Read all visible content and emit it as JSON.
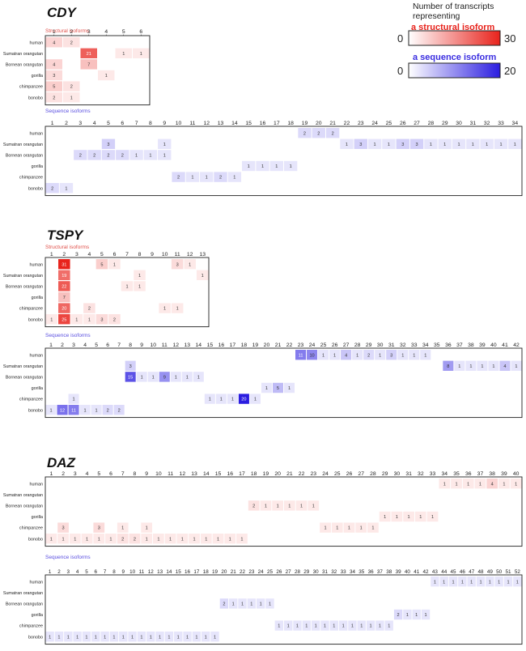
{
  "legend": {
    "title": "Number of transcripts representing",
    "structural_label": "a structural isoform",
    "structural_min": "0",
    "structural_max": "30",
    "sequence_label": "a sequence isoform",
    "sequence_min": "0",
    "sequence_max": "20",
    "structural_color": "#e8231c",
    "sequence_color": "#2b1de0"
  },
  "species": [
    "human",
    "Sumatran orangutan",
    "Bornean orangutan",
    "gorilla",
    "chimpanzee",
    "bonobo"
  ],
  "chart_data": [
    {
      "type": "heatmap",
      "gene": "CDY",
      "panels": [
        {
          "kind": "structural",
          "title": "Structural isoforms",
          "columns": 6,
          "scale_max": 30,
          "cells": [
            [
              0,
              1,
              4
            ],
            [
              0,
              2,
              2
            ],
            [
              1,
              3,
              21
            ],
            [
              1,
              5,
              1
            ],
            [
              1,
              6,
              1
            ],
            [
              2,
              1,
              4
            ],
            [
              2,
              3,
              7
            ],
            [
              3,
              1,
              3
            ],
            [
              3,
              4,
              1
            ],
            [
              4,
              1,
              5
            ],
            [
              4,
              2,
              2
            ],
            [
              5,
              1,
              2
            ],
            [
              5,
              2,
              1
            ]
          ]
        },
        {
          "kind": "sequence",
          "title": "Sequence isoforms",
          "columns": 34,
          "scale_max": 20,
          "cells": [
            [
              0,
              19,
              2
            ],
            [
              0,
              20,
              2
            ],
            [
              0,
              21,
              2
            ],
            [
              1,
              5,
              3
            ],
            [
              1,
              9,
              1
            ],
            [
              1,
              22,
              1
            ],
            [
              1,
              23,
              3
            ],
            [
              1,
              24,
              1
            ],
            [
              1,
              25,
              1
            ],
            [
              1,
              26,
              3
            ],
            [
              1,
              27,
              3
            ],
            [
              1,
              28,
              1
            ],
            [
              1,
              29,
              1
            ],
            [
              1,
              30,
              1
            ],
            [
              1,
              31,
              1
            ],
            [
              1,
              32,
              1
            ],
            [
              1,
              33,
              1
            ],
            [
              1,
              34,
              1
            ],
            [
              2,
              3,
              2
            ],
            [
              2,
              4,
              2
            ],
            [
              2,
              5,
              2
            ],
            [
              2,
              6,
              2
            ],
            [
              2,
              7,
              1
            ],
            [
              2,
              8,
              1
            ],
            [
              2,
              9,
              1
            ],
            [
              3,
              15,
              1
            ],
            [
              3,
              16,
              1
            ],
            [
              3,
              17,
              1
            ],
            [
              3,
              18,
              1
            ],
            [
              4,
              10,
              2
            ],
            [
              4,
              11,
              1
            ],
            [
              4,
              12,
              1
            ],
            [
              4,
              13,
              2
            ],
            [
              4,
              14,
              1
            ],
            [
              5,
              1,
              2
            ],
            [
              5,
              2,
              1
            ]
          ]
        }
      ]
    },
    {
      "type": "heatmap",
      "gene": "TSPY",
      "panels": [
        {
          "kind": "structural",
          "title": "Structural isoforms",
          "columns": 13,
          "scale_max": 30,
          "cells": [
            [
              0,
              2,
              31
            ],
            [
              0,
              5,
              5
            ],
            [
              0,
              6,
              1
            ],
            [
              0,
              11,
              3
            ],
            [
              0,
              12,
              1
            ],
            [
              1,
              2,
              19
            ],
            [
              1,
              8,
              1
            ],
            [
              1,
              13,
              1
            ],
            [
              2,
              2,
              22
            ],
            [
              2,
              7,
              1
            ],
            [
              2,
              8,
              1
            ],
            [
              3,
              2,
              7
            ],
            [
              4,
              2,
              20
            ],
            [
              4,
              4,
              2
            ],
            [
              4,
              10,
              1
            ],
            [
              4,
              11,
              1
            ],
            [
              5,
              1,
              1
            ],
            [
              5,
              2,
              25
            ],
            [
              5,
              3,
              1
            ],
            [
              5,
              4,
              1
            ],
            [
              5,
              5,
              3
            ],
            [
              5,
              6,
              2
            ]
          ]
        },
        {
          "kind": "sequence",
          "title": "Sequence isoforms",
          "columns": 42,
          "scale_max": 20,
          "cells": [
            [
              0,
              23,
              11
            ],
            [
              0,
              24,
              10
            ],
            [
              0,
              25,
              1
            ],
            [
              0,
              26,
              1
            ],
            [
              0,
              27,
              4
            ],
            [
              0,
              28,
              1
            ],
            [
              0,
              29,
              2
            ],
            [
              0,
              30,
              1
            ],
            [
              0,
              31,
              3
            ],
            [
              0,
              32,
              1
            ],
            [
              0,
              33,
              1
            ],
            [
              0,
              34,
              1
            ],
            [
              1,
              8,
              3
            ],
            [
              1,
              36,
              8
            ],
            [
              1,
              37,
              1
            ],
            [
              1,
              38,
              1
            ],
            [
              1,
              39,
              1
            ],
            [
              1,
              40,
              1
            ],
            [
              1,
              41,
              4
            ],
            [
              1,
              42,
              1
            ],
            [
              2,
              8,
              15
            ],
            [
              2,
              9,
              1
            ],
            [
              2,
              10,
              1
            ],
            [
              2,
              11,
              9
            ],
            [
              2,
              12,
              1
            ],
            [
              2,
              13,
              1
            ],
            [
              2,
              14,
              1
            ],
            [
              3,
              20,
              1
            ],
            [
              3,
              21,
              5
            ],
            [
              3,
              22,
              1
            ],
            [
              4,
              3,
              1
            ],
            [
              4,
              15,
              1
            ],
            [
              4,
              16,
              1
            ],
            [
              4,
              17,
              1
            ],
            [
              4,
              18,
              20
            ],
            [
              4,
              19,
              1
            ],
            [
              5,
              1,
              1
            ],
            [
              5,
              2,
              12
            ],
            [
              5,
              3,
              11
            ],
            [
              5,
              4,
              1
            ],
            [
              5,
              5,
              1
            ],
            [
              5,
              6,
              2
            ],
            [
              5,
              7,
              2
            ]
          ]
        }
      ]
    },
    {
      "type": "heatmap",
      "gene": "DAZ",
      "panels": [
        {
          "kind": "structural",
          "title": "",
          "columns": 40,
          "scale_max": 30,
          "cells": [
            [
              0,
              34,
              1
            ],
            [
              0,
              35,
              1
            ],
            [
              0,
              36,
              1
            ],
            [
              0,
              37,
              1
            ],
            [
              0,
              38,
              4
            ],
            [
              0,
              39,
              1
            ],
            [
              0,
              40,
              1
            ],
            [
              2,
              18,
              2
            ],
            [
              2,
              19,
              1
            ],
            [
              2,
              20,
              1
            ],
            [
              2,
              21,
              1
            ],
            [
              2,
              22,
              1
            ],
            [
              2,
              23,
              1
            ],
            [
              3,
              29,
              1
            ],
            [
              3,
              30,
              1
            ],
            [
              3,
              31,
              1
            ],
            [
              3,
              32,
              1
            ],
            [
              3,
              33,
              1
            ],
            [
              4,
              2,
              3
            ],
            [
              4,
              5,
              3
            ],
            [
              4,
              7,
              1
            ],
            [
              4,
              9,
              1
            ],
            [
              4,
              24,
              1
            ],
            [
              4,
              25,
              1
            ],
            [
              4,
              26,
              1
            ],
            [
              4,
              27,
              1
            ],
            [
              4,
              28,
              1
            ],
            [
              5,
              1,
              1
            ],
            [
              5,
              2,
              1
            ],
            [
              5,
              3,
              1
            ],
            [
              5,
              4,
              1
            ],
            [
              5,
              5,
              1
            ],
            [
              5,
              6,
              1
            ],
            [
              5,
              7,
              2
            ],
            [
              5,
              8,
              2
            ],
            [
              5,
              9,
              1
            ],
            [
              5,
              10,
              1
            ],
            [
              5,
              11,
              1
            ],
            [
              5,
              12,
              1
            ],
            [
              5,
              13,
              1
            ],
            [
              5,
              14,
              1
            ],
            [
              5,
              15,
              1
            ],
            [
              5,
              16,
              1
            ],
            [
              5,
              17,
              1
            ]
          ]
        },
        {
          "kind": "sequence",
          "title": "Sequence isoforms",
          "columns": 52,
          "scale_max": 20,
          "cells": [
            [
              0,
              43,
              1
            ],
            [
              0,
              44,
              1
            ],
            [
              0,
              45,
              1
            ],
            [
              0,
              46,
              1
            ],
            [
              0,
              47,
              1
            ],
            [
              0,
              48,
              1
            ],
            [
              0,
              49,
              1
            ],
            [
              0,
              50,
              1
            ],
            [
              0,
              51,
              1
            ],
            [
              0,
              52,
              1
            ],
            [
              2,
              20,
              2
            ],
            [
              2,
              21,
              1
            ],
            [
              2,
              22,
              1
            ],
            [
              2,
              23,
              1
            ],
            [
              2,
              24,
              1
            ],
            [
              2,
              25,
              1
            ],
            [
              3,
              39,
              2
            ],
            [
              3,
              40,
              1
            ],
            [
              3,
              41,
              1
            ],
            [
              3,
              42,
              1
            ],
            [
              4,
              26,
              1
            ],
            [
              4,
              27,
              1
            ],
            [
              4,
              28,
              1
            ],
            [
              4,
              29,
              1
            ],
            [
              4,
              30,
              1
            ],
            [
              4,
              31,
              1
            ],
            [
              4,
              32,
              1
            ],
            [
              4,
              33,
              1
            ],
            [
              4,
              34,
              1
            ],
            [
              4,
              35,
              1
            ],
            [
              4,
              36,
              1
            ],
            [
              4,
              37,
              1
            ],
            [
              4,
              38,
              1
            ],
            [
              5,
              1,
              1
            ],
            [
              5,
              2,
              1
            ],
            [
              5,
              3,
              1
            ],
            [
              5,
              4,
              1
            ],
            [
              5,
              5,
              1
            ],
            [
              5,
              6,
              1
            ],
            [
              5,
              7,
              1
            ],
            [
              5,
              8,
              1
            ],
            [
              5,
              9,
              1
            ],
            [
              5,
              10,
              1
            ],
            [
              5,
              11,
              1
            ],
            [
              5,
              12,
              1
            ],
            [
              5,
              13,
              1
            ],
            [
              5,
              14,
              1
            ],
            [
              5,
              15,
              1
            ],
            [
              5,
              16,
              1
            ],
            [
              5,
              17,
              1
            ],
            [
              5,
              18,
              1
            ],
            [
              5,
              19,
              1
            ]
          ]
        }
      ]
    }
  ]
}
